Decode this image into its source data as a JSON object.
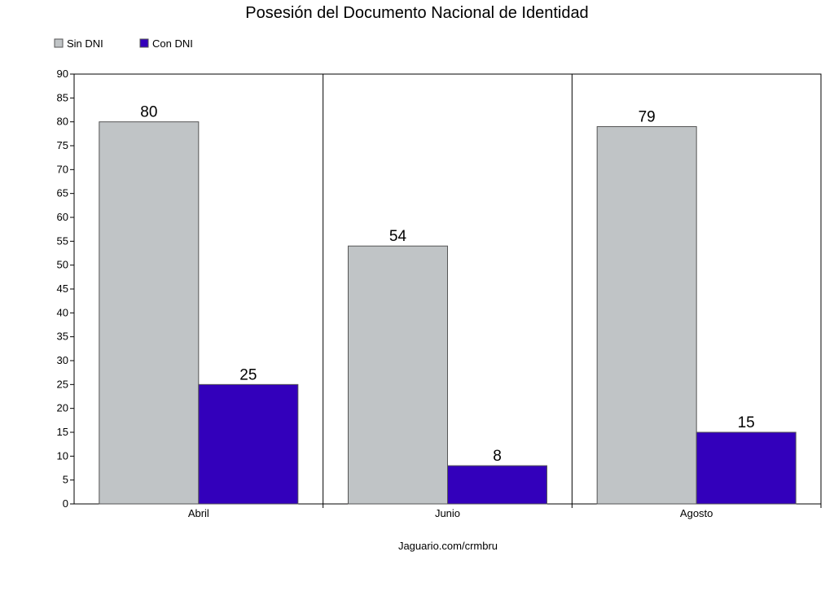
{
  "chart_data": {
    "type": "bar",
    "title": "Posesión del Documento Nacional de Identidad",
    "categories": [
      "Abril",
      "Junio",
      "Agosto"
    ],
    "series": [
      {
        "name": "Sin DNI",
        "values": [
          80,
          54,
          79
        ],
        "color": "#c0c4c6"
      },
      {
        "name": "Con DNI",
        "values": [
          25,
          8,
          15
        ],
        "color": "#3300bb"
      }
    ],
    "ylim": [
      0,
      90
    ],
    "ytick_step": 5,
    "xlabel": "",
    "ylabel": "",
    "legend": "top-left",
    "grid": false
  },
  "footer": "Jaguario.com/crmbru"
}
